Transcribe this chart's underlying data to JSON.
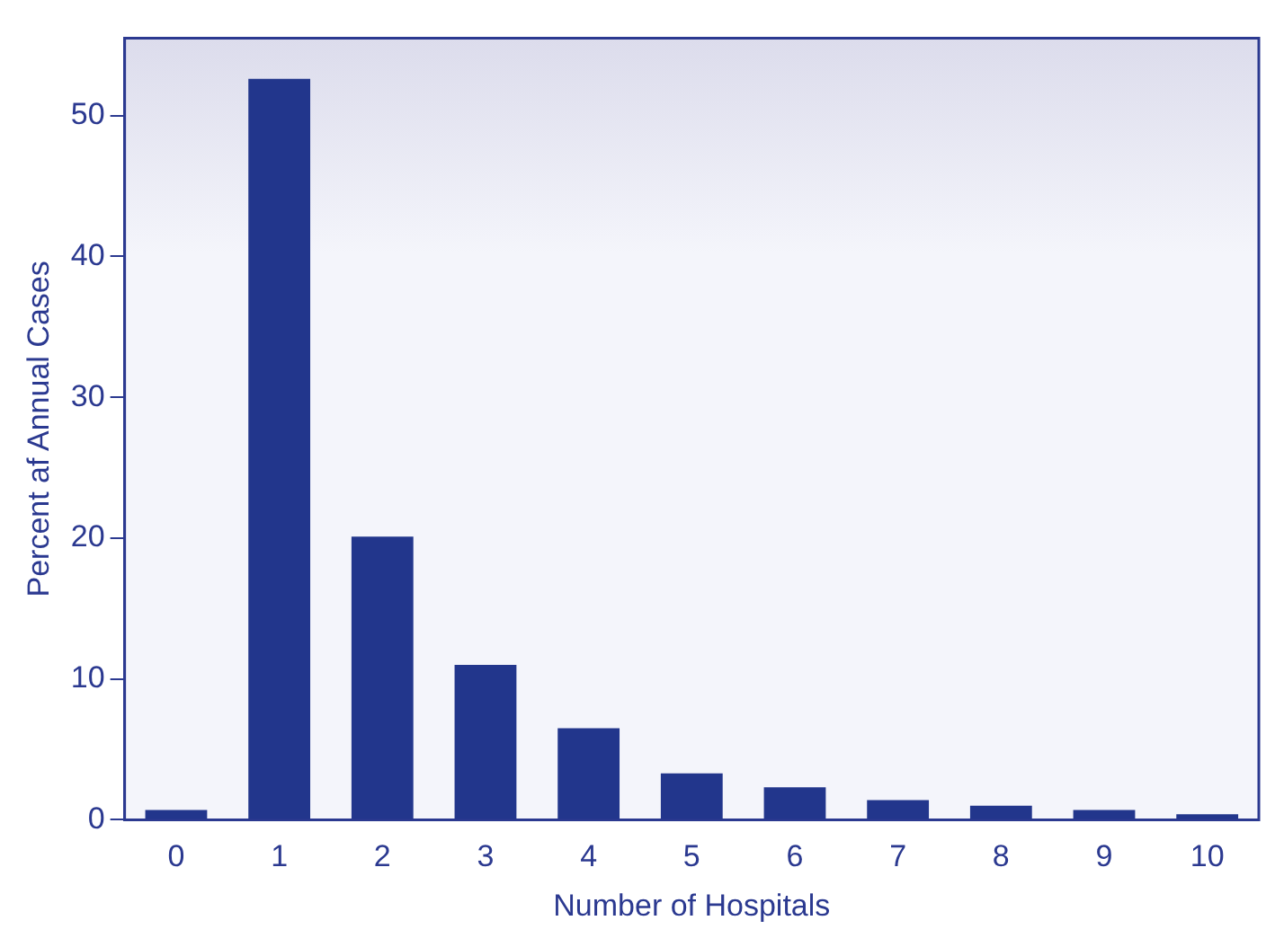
{
  "chart_data": {
    "type": "bar",
    "xlabel": "Number of Hospitals",
    "ylabel": "Percent af Annual Cases",
    "categories": [
      "0",
      "1",
      "2",
      "3",
      "4",
      "5",
      "6",
      "7",
      "8",
      "9",
      "10"
    ],
    "values": [
      0.7,
      52.6,
      20.1,
      11.0,
      6.5,
      3.3,
      2.3,
      1.4,
      1.0,
      0.7,
      0.4
    ],
    "color": "#22368c",
    "ylim": [
      0,
      55.5
    ],
    "yticks": [
      0,
      10,
      20,
      30,
      40,
      50
    ],
    "grid": false
  }
}
